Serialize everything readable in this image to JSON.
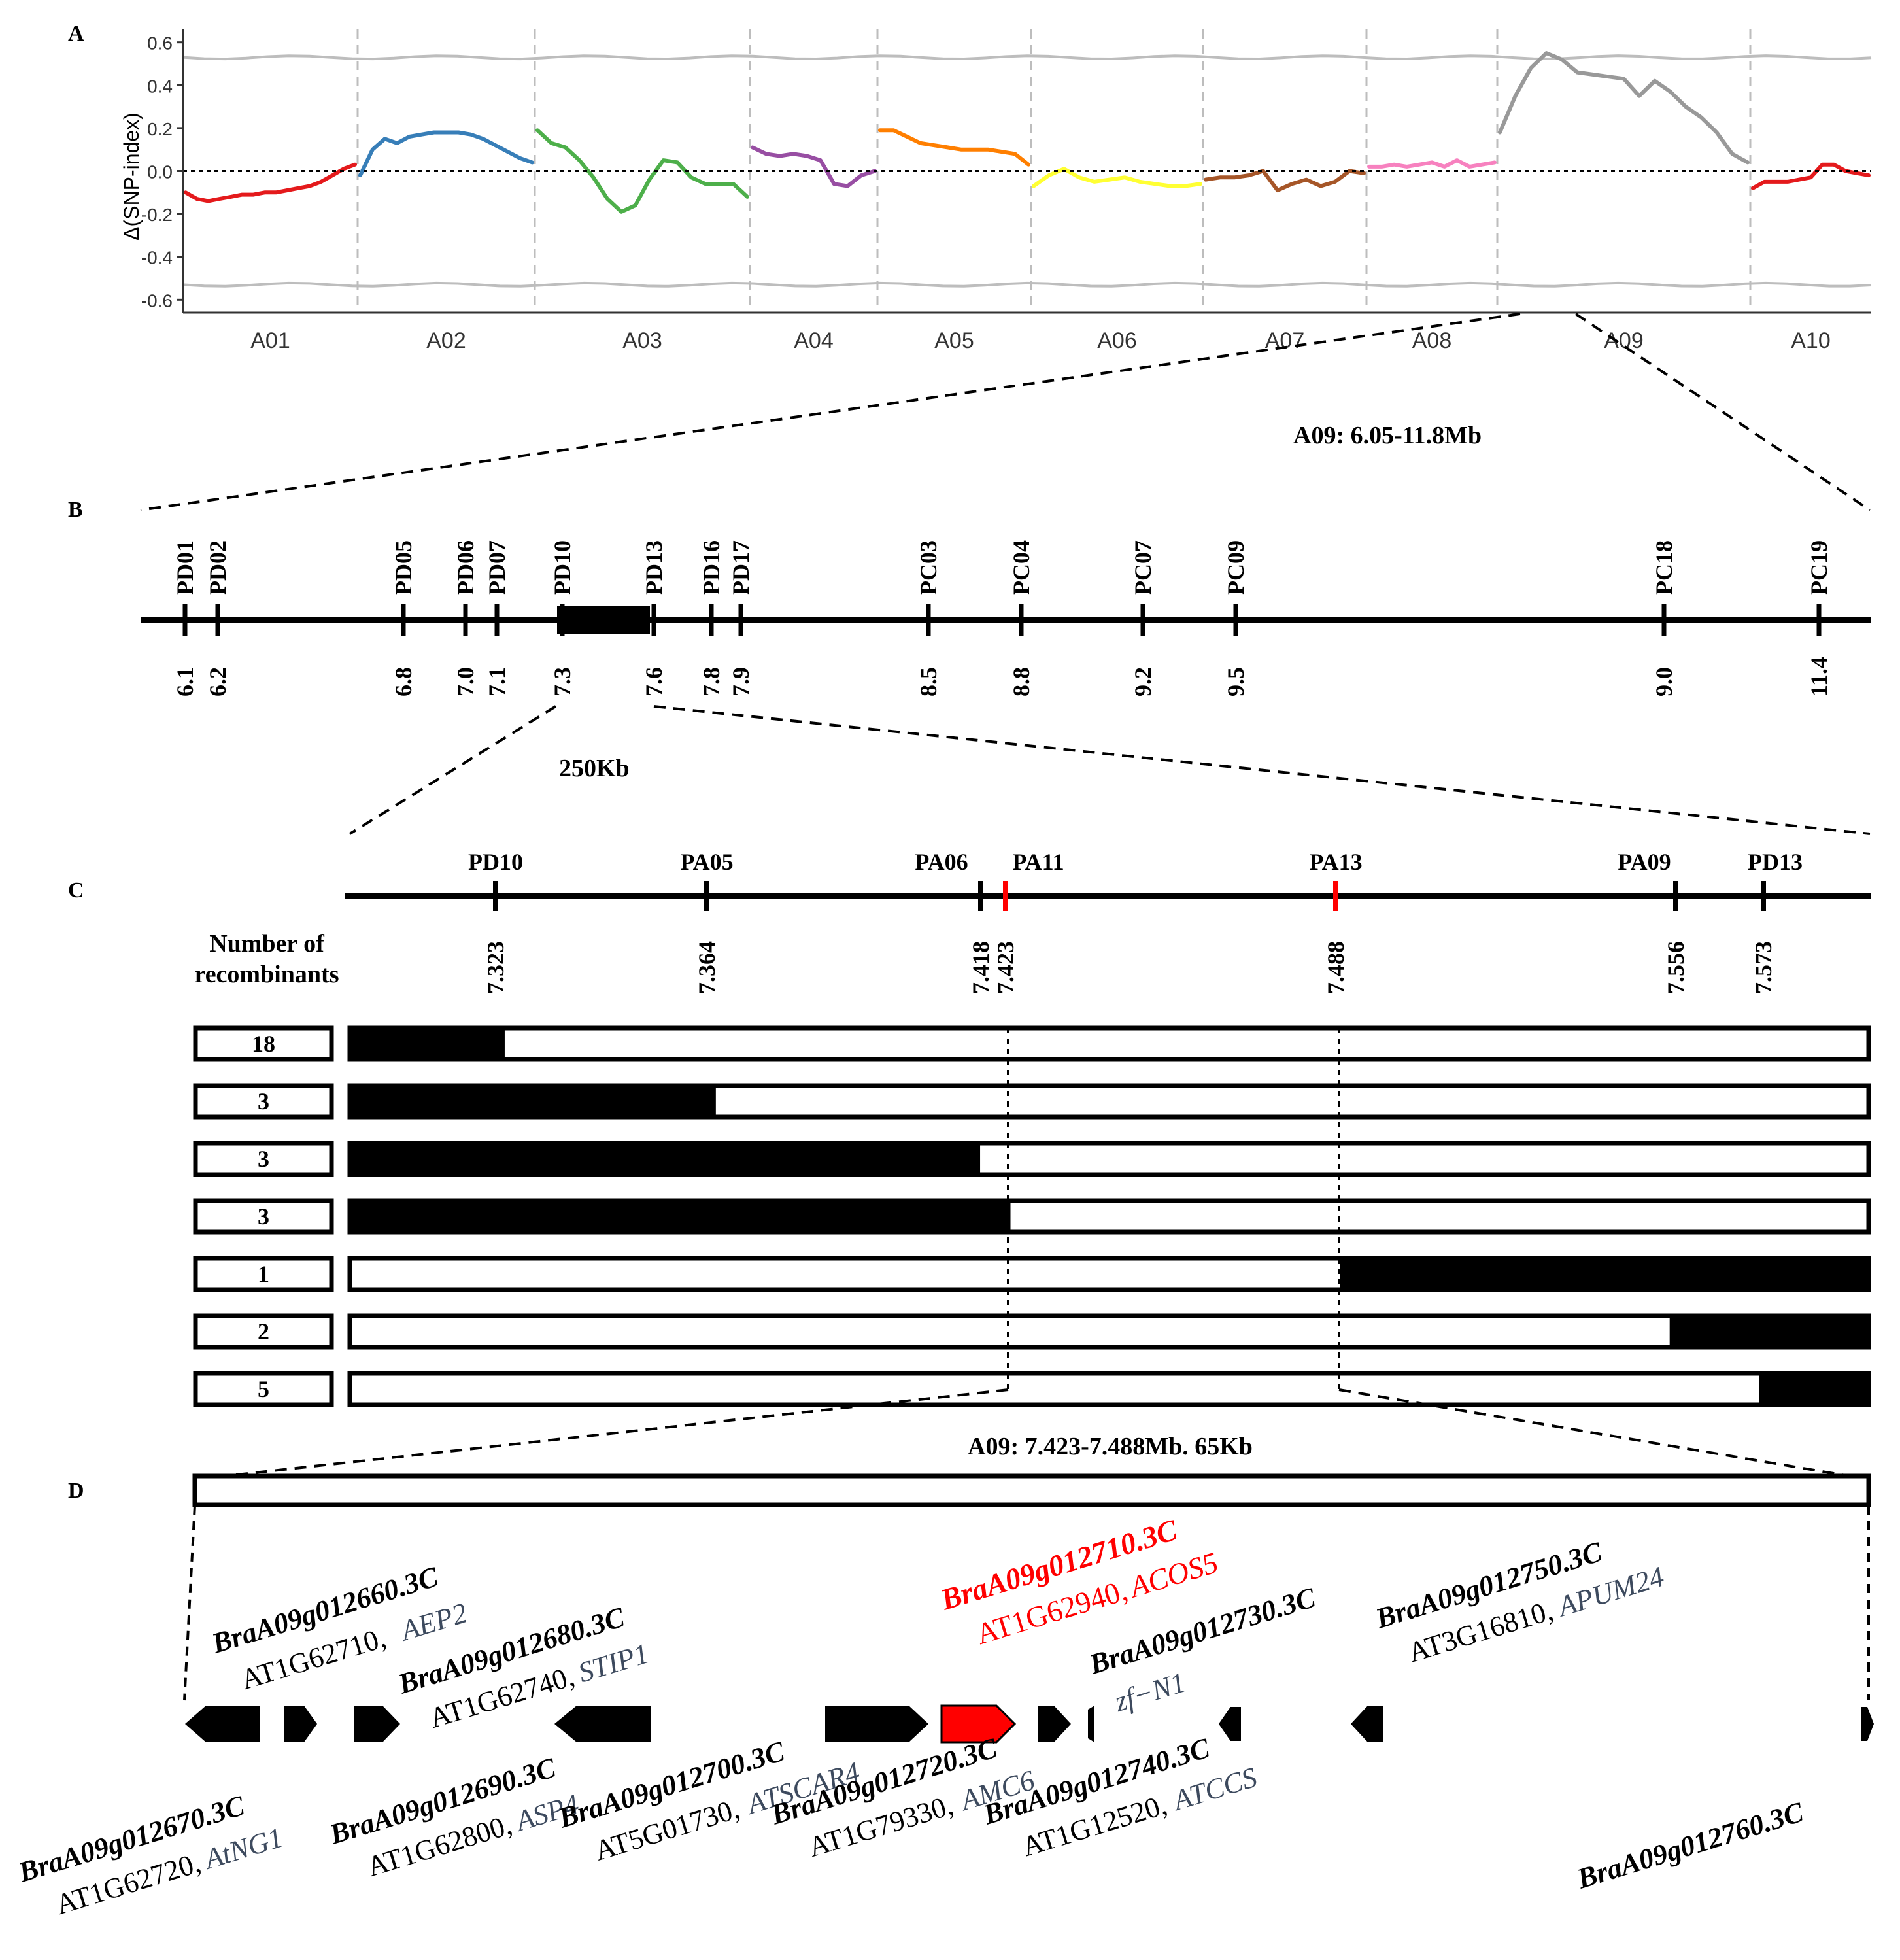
{
  "colors": {
    "threshold": "#bdbdbd",
    "dashed_grid": "#bdbdbd",
    "black": "#000000",
    "red": "#ff0000",
    "gene_symbol": "#3d4a5e"
  },
  "panels": {
    "a": {
      "label": "A"
    },
    "b": {
      "label": "B",
      "region": "A09: 6.05-11.8Mb"
    },
    "c": {
      "label": "C",
      "width_label": "250Kb",
      "recombinants_header_1": "Number of",
      "recombinants_header_2": "recombinants"
    },
    "d": {
      "label": "D",
      "region": "A09: 7.423-7.488Mb. 65Kb"
    }
  },
  "chart_data": {
    "type": "line",
    "ylabel": "Δ(SNP-index)",
    "ylim": [
      -0.66,
      0.66
    ],
    "yticks": [
      "0.6",
      "0.4",
      "0.2",
      "0.0",
      "-0.2",
      "-0.4",
      "-0.6"
    ],
    "ytick_values": [
      0.6,
      0.4,
      0.2,
      0.0,
      -0.2,
      -0.4,
      -0.6
    ],
    "threshold_upper": 0.53,
    "threshold_lower": -0.53,
    "reference_line": 0.0,
    "chromosomes": [
      "A01",
      "A02",
      "A03",
      "A04",
      "A05",
      "A06",
      "A07",
      "A08",
      "A09",
      "A10"
    ],
    "chromosome_spans": [
      [
        0,
        1
      ],
      [
        1,
        2
      ],
      [
        2,
        3
      ],
      [
        3,
        4
      ],
      [
        4,
        5
      ],
      [
        5,
        6
      ],
      [
        6,
        7
      ],
      [
        7,
        8
      ],
      [
        8,
        9
      ],
      [
        9,
        10
      ]
    ],
    "series": [
      {
        "name": "A01",
        "color": "#e41a1c",
        "values": [
          -0.1,
          -0.13,
          -0.14,
          -0.13,
          -0.12,
          -0.11,
          -0.11,
          -0.1,
          -0.1,
          -0.09,
          -0.08,
          -0.07,
          -0.05,
          -0.02,
          0.01,
          0.03
        ]
      },
      {
        "name": "A02",
        "color": "#377eb8",
        "values": [
          -0.02,
          0.1,
          0.15,
          0.13,
          0.16,
          0.17,
          0.18,
          0.18,
          0.18,
          0.17,
          0.15,
          0.12,
          0.09,
          0.06,
          0.04
        ]
      },
      {
        "name": "A03",
        "color": "#4daf4a",
        "values": [
          0.19,
          0.13,
          0.11,
          0.05,
          -0.03,
          -0.13,
          -0.19,
          -0.16,
          -0.04,
          0.05,
          0.04,
          -0.03,
          -0.06,
          -0.06,
          -0.06,
          -0.12
        ]
      },
      {
        "name": "A04",
        "color": "#984ea3",
        "values": [
          0.11,
          0.08,
          0.07,
          0.08,
          0.07,
          0.05,
          -0.06,
          -0.07,
          -0.02,
          0.0
        ]
      },
      {
        "name": "A05",
        "color": "#ff7f00",
        "values": [
          0.19,
          0.19,
          0.16,
          0.13,
          0.12,
          0.11,
          0.1,
          0.1,
          0.1,
          0.09,
          0.08,
          0.03
        ]
      },
      {
        "name": "A06",
        "color": "#ffff33",
        "values": [
          -0.07,
          -0.02,
          0.01,
          -0.03,
          -0.05,
          -0.04,
          -0.03,
          -0.05,
          -0.06,
          -0.07,
          -0.07,
          -0.06
        ]
      },
      {
        "name": "A07",
        "color": "#a65628",
        "values": [
          -0.04,
          -0.03,
          -0.03,
          -0.02,
          0.0,
          -0.09,
          -0.06,
          -0.04,
          -0.07,
          -0.05,
          0.0,
          -0.01
        ]
      },
      {
        "name": "A08",
        "color": "#f781bf",
        "values": [
          0.02,
          0.02,
          0.03,
          0.02,
          0.03,
          0.04,
          0.02,
          0.05,
          0.02,
          0.03,
          0.04
        ]
      },
      {
        "name": "A09",
        "color": "#999999",
        "values": [
          0.18,
          0.35,
          0.48,
          0.55,
          0.52,
          0.46,
          0.45,
          0.44,
          0.43,
          0.35,
          0.42,
          0.37,
          0.3,
          0.25,
          0.18,
          0.08,
          0.04
        ]
      },
      {
        "name": "A10",
        "color": "#e41a1c",
        "values": [
          -0.08,
          -0.05,
          -0.05,
          -0.05,
          -0.04,
          -0.03,
          0.03,
          0.03,
          0.0,
          -0.01,
          -0.02
        ]
      }
    ]
  },
  "markers_b": [
    {
      "name": "PD01",
      "pos": "6.1"
    },
    {
      "name": "PD02",
      "pos": "6.2"
    },
    {
      "name": "PD05",
      "pos": "6.8"
    },
    {
      "name": "PD06",
      "pos": "7.0"
    },
    {
      "name": "PD07",
      "pos": "7.1"
    },
    {
      "name": "PD10",
      "pos": "7.3"
    },
    {
      "name": "PD13",
      "pos": "7.6"
    },
    {
      "name": "PD16",
      "pos": "7.8"
    },
    {
      "name": "PD17",
      "pos": "7.9"
    },
    {
      "name": "PC03",
      "pos": "8.5"
    },
    {
      "name": "PC04",
      "pos": "8.8"
    },
    {
      "name": "PC07",
      "pos": "9.2"
    },
    {
      "name": "PC09",
      "pos": "9.5"
    },
    {
      "name": "PC18",
      "pos": "9.0"
    },
    {
      "name": "PC19",
      "pos": "11.4"
    }
  ],
  "markers_c": [
    {
      "name": "PD10",
      "pos": "7.323",
      "red": false
    },
    {
      "name": "PA05",
      "pos": "7.364",
      "red": false
    },
    {
      "name": "PA06",
      "pos": "7.418",
      "red": false
    },
    {
      "name": "PA11",
      "pos": "7.423",
      "red": true
    },
    {
      "name": "PA13",
      "pos": "7.488",
      "red": true
    },
    {
      "name": "PA09",
      "pos": "7.556",
      "red": false
    },
    {
      "name": "PD13",
      "pos": "7.573",
      "red": false
    }
  ],
  "recombinants": [
    {
      "count": "18",
      "fill_from": 0.0,
      "fill_to": 0.102
    },
    {
      "count": "3",
      "fill_from": 0.0,
      "fill_to": 0.241
    },
    {
      "count": "3",
      "fill_from": 0.0,
      "fill_to": 0.415
    },
    {
      "count": "3",
      "fill_from": 0.0,
      "fill_to": 0.435
    },
    {
      "count": "1",
      "fill_from": 0.652,
      "fill_to": 1.0
    },
    {
      "count": "2",
      "fill_from": 0.869,
      "fill_to": 1.0
    },
    {
      "count": "5",
      "fill_from": 0.928,
      "fill_to": 1.0
    }
  ],
  "genes_top": [
    {
      "id": "BraA09g012660.3C",
      "at": "AT1G62710,",
      "sym": "AEP2",
      "red": false
    },
    {
      "id": "BraA09g012680.3C",
      "at": "AT1G62740,",
      "sym": "STIP1",
      "red": false
    },
    {
      "id": "BraA09g012710.3C",
      "at": "AT1G62940,",
      "sym": "ACOS5",
      "red": true
    },
    {
      "id": "BraA09g012730.3C",
      "at": "",
      "sym": "zf−N1",
      "red": false
    },
    {
      "id": "BraA09g012750.3C",
      "at": "AT3G16810,",
      "sym": "APUM24",
      "red": false
    }
  ],
  "genes_bottom": [
    {
      "id": "BraA09g012670.3C",
      "at": "AT1G62720,",
      "sym": "AtNG1"
    },
    {
      "id": "BraA09g012690.3C",
      "at": "AT1G62800,",
      "sym": "ASP4"
    },
    {
      "id": "BraA09g012700.3C",
      "at": "AT5G01730,",
      "sym": "ATSCAR4"
    },
    {
      "id": "BraA09g012720.3C",
      "at": "AT1G79330,",
      "sym": "AMC6"
    },
    {
      "id": "BraA09g012740.3C",
      "at": "AT1G12520,",
      "sym": "ATCCS"
    },
    {
      "id": "BraA09g012760.3C",
      "at": "",
      "sym": ""
    }
  ]
}
